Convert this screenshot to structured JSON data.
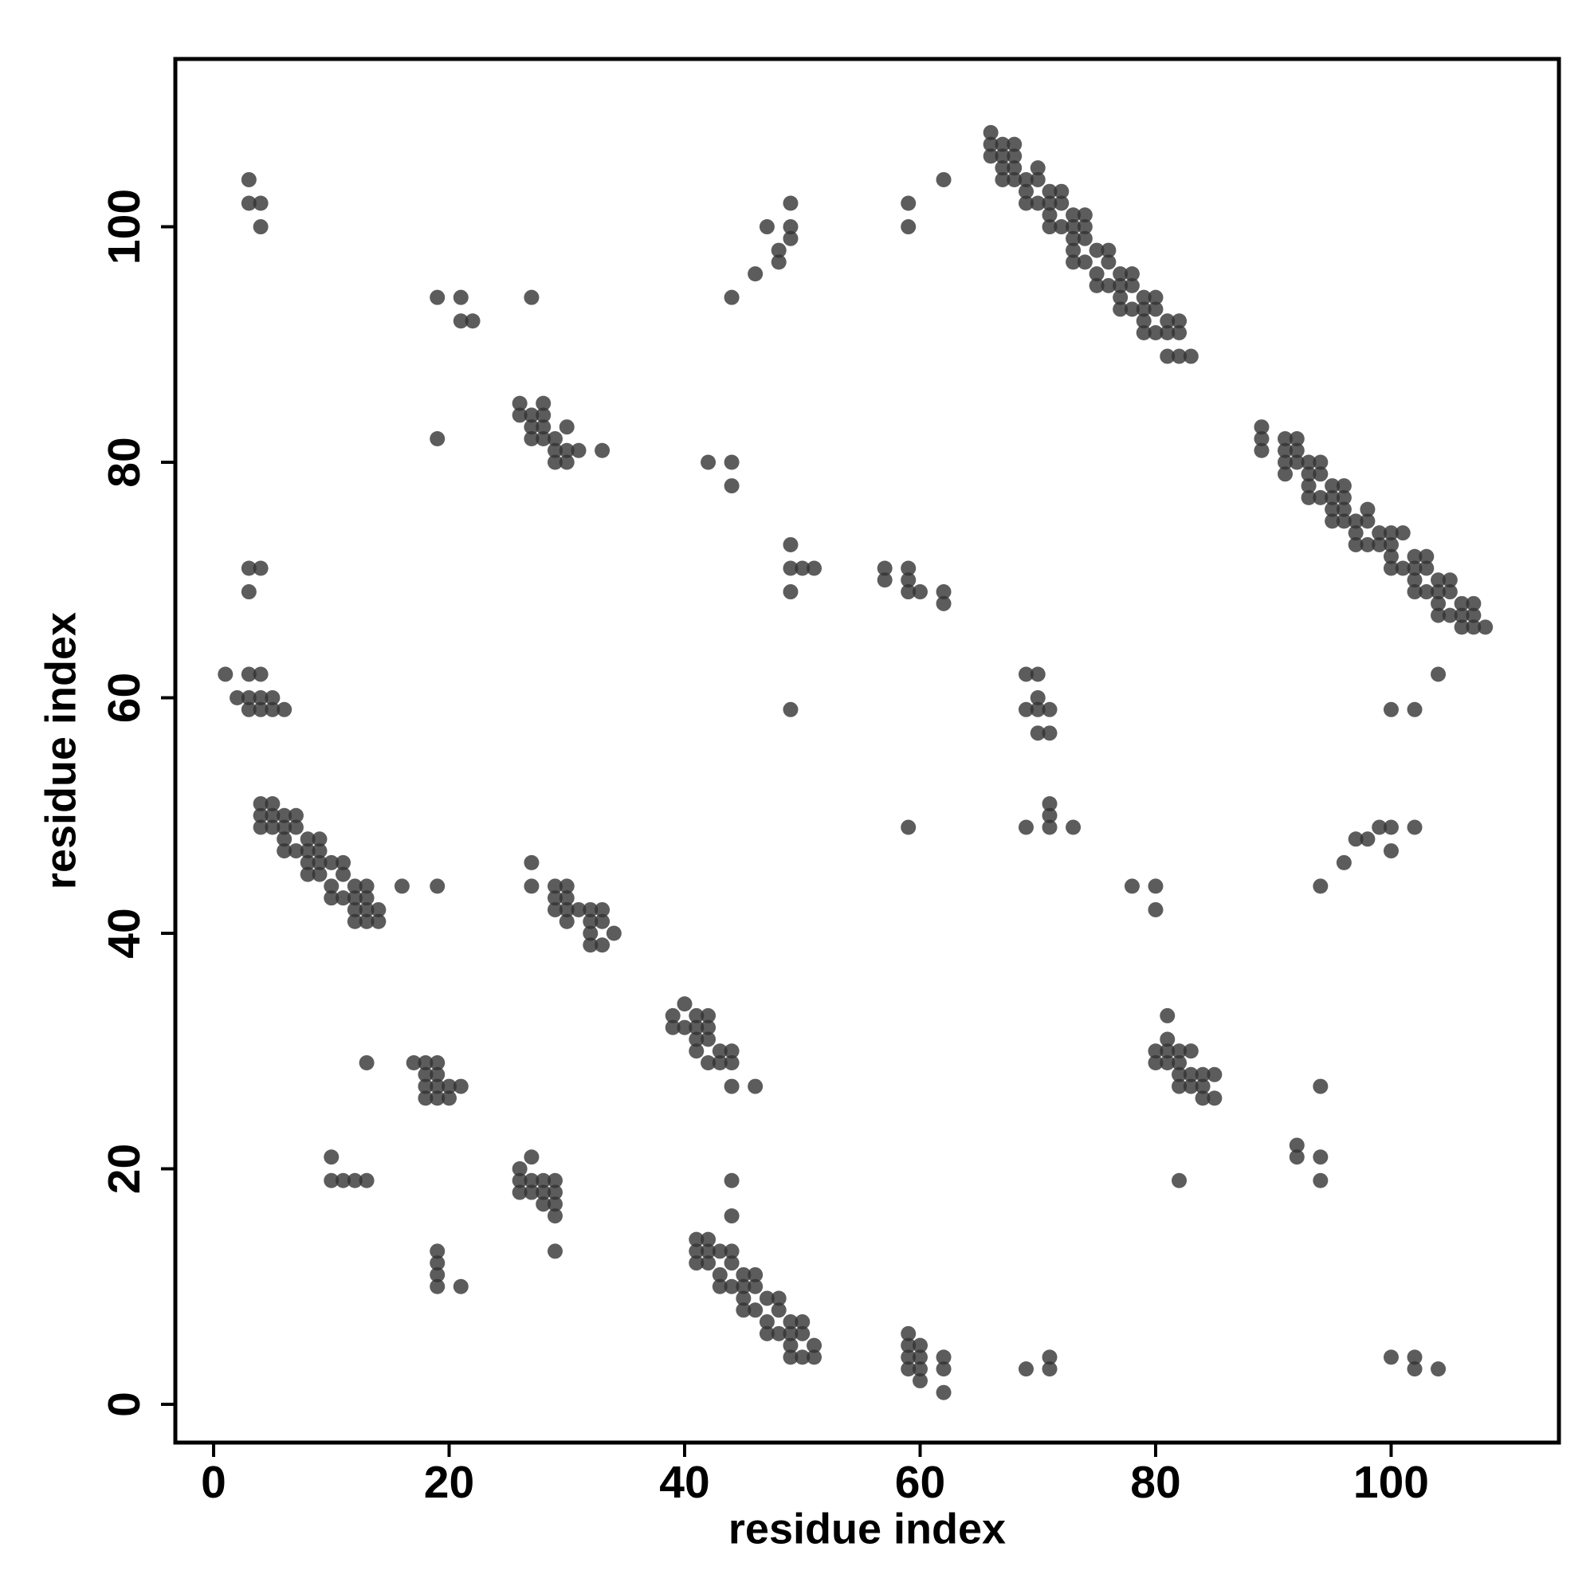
{
  "chart_data": {
    "type": "scatter",
    "x_label": "residue index",
    "y_label": "residue index",
    "color": "#333333",
    "xlim": [
      -3.25,
      114.25
    ],
    "ylim": [
      -3.25,
      114.25
    ],
    "xticks": [
      0,
      20,
      40,
      60,
      80,
      100
    ],
    "yticks": [
      0,
      20,
      40,
      60,
      80,
      100
    ],
    "x": [
      3,
      3,
      4,
      4,
      19,
      21,
      21,
      22,
      27,
      19,
      3,
      4,
      3,
      1,
      3,
      4,
      2,
      3,
      4,
      5,
      3,
      4,
      5,
      6,
      4,
      5,
      4,
      5,
      6,
      7,
      4,
      5,
      6,
      7,
      6,
      8,
      9,
      6,
      7,
      8,
      9,
      8,
      9,
      10,
      11,
      8,
      9,
      11,
      10,
      12,
      13,
      10,
      11,
      12,
      13,
      12,
      13,
      14,
      12,
      13,
      14,
      16,
      19,
      26,
      28,
      26,
      27,
      28,
      27,
      28,
      30,
      27,
      28,
      29,
      29,
      30,
      31,
      33,
      29,
      30,
      27,
      27,
      29,
      30,
      29,
      30,
      29,
      30,
      31,
      32,
      33,
      30,
      32,
      33,
      32,
      34,
      32,
      33,
      39,
      40,
      41,
      42,
      39,
      40,
      41,
      42,
      41,
      42,
      41,
      43,
      44,
      42,
      43,
      44,
      44,
      46,
      13,
      17,
      18,
      19,
      18,
      19,
      18,
      19,
      20,
      21,
      18,
      19,
      20,
      10,
      10,
      11,
      12,
      13,
      26,
      27,
      26,
      27,
      28,
      29,
      26,
      27,
      28,
      29,
      28,
      29,
      29,
      29,
      19,
      19,
      19,
      19,
      21,
      44,
      44,
      41,
      42,
      41,
      42,
      43,
      44,
      41,
      42,
      44,
      43,
      45,
      46,
      43,
      44,
      45,
      46,
      45,
      47,
      48,
      45,
      46,
      48,
      47,
      49,
      50,
      47,
      48,
      49,
      50,
      49,
      51,
      49,
      50,
      51,
      59,
      59,
      60,
      59,
      60,
      59,
      60,
      62,
      62,
      60,
      62,
      69,
      71,
      71,
      42,
      44,
      44,
      44,
      46,
      47,
      48,
      48,
      49,
      49,
      49,
      49,
      49,
      50,
      51,
      49,
      49,
      57,
      59,
      57,
      59,
      59,
      60,
      62,
      62,
      59,
      59,
      62,
      66,
      66,
      67,
      68,
      66,
      67,
      68,
      67,
      68,
      70,
      67,
      68,
      69,
      70,
      69,
      71,
      72,
      69,
      70,
      71,
      72,
      71,
      73,
      74,
      71,
      72,
      73,
      74,
      73,
      74,
      73,
      75,
      76,
      73,
      74,
      76,
      75,
      77,
      78,
      75,
      76,
      77,
      78,
      77,
      79,
      80,
      77,
      78,
      79,
      80,
      79,
      81,
      82,
      79,
      80,
      81,
      82,
      81,
      82,
      83,
      69,
      70,
      70,
      70,
      71,
      71,
      70,
      69,
      59,
      71,
      71,
      69,
      71,
      73,
      78,
      80,
      80,
      81,
      81,
      80,
      81,
      82,
      83,
      80,
      81,
      82,
      82,
      83,
      84,
      85,
      82,
      83,
      84,
      84,
      85,
      82,
      89,
      89,
      89,
      91,
      92,
      91,
      92,
      91,
      92,
      93,
      94,
      91,
      93,
      94,
      93,
      95,
      96,
      93,
      94,
      95,
      96,
      95,
      96,
      98,
      95,
      96,
      97,
      98,
      97,
      99,
      100,
      101,
      97,
      98,
      99,
      100,
      100,
      102,
      103,
      100,
      101,
      102,
      103,
      102,
      104,
      105,
      102,
      103,
      104,
      105,
      104,
      106,
      107,
      104,
      105,
      106,
      107,
      106,
      107,
      108,
      104,
      100,
      102,
      96,
      97,
      98,
      99,
      100,
      100,
      102,
      94,
      94,
      92,
      92,
      94,
      94,
      100,
      102,
      102,
      104
    ],
    "values": [
      104,
      102,
      102,
      100,
      94,
      94,
      92,
      92,
      94,
      82,
      71,
      71,
      69,
      62,
      62,
      62,
      60,
      60,
      60,
      60,
      59,
      59,
      59,
      59,
      51,
      51,
      50,
      50,
      50,
      50,
      49,
      49,
      49,
      49,
      48,
      48,
      48,
      47,
      47,
      47,
      47,
      46,
      46,
      46,
      46,
      45,
      45,
      45,
      44,
      44,
      44,
      43,
      43,
      43,
      43,
      42,
      42,
      42,
      41,
      41,
      41,
      44,
      44,
      85,
      85,
      84,
      84,
      84,
      83,
      83,
      83,
      82,
      82,
      82,
      81,
      81,
      81,
      81,
      80,
      80,
      46,
      44,
      44,
      44,
      43,
      43,
      42,
      42,
      42,
      42,
      42,
      41,
      41,
      41,
      40,
      40,
      39,
      39,
      33,
      34,
      33,
      33,
      32,
      32,
      32,
      32,
      31,
      31,
      30,
      30,
      30,
      29,
      29,
      29,
      27,
      27,
      29,
      29,
      29,
      29,
      28,
      28,
      27,
      27,
      27,
      27,
      26,
      26,
      26,
      21,
      19,
      19,
      19,
      19,
      20,
      21,
      19,
      19,
      19,
      19,
      18,
      18,
      18,
      18,
      17,
      17,
      16,
      13,
      13,
      12,
      11,
      10,
      10,
      19,
      16,
      14,
      14,
      13,
      13,
      13,
      13,
      12,
      12,
      12,
      11,
      11,
      11,
      10,
      10,
      10,
      10,
      9,
      9,
      9,
      8,
      8,
      8,
      7,
      7,
      7,
      6,
      6,
      6,
      6,
      5,
      5,
      4,
      4,
      4,
      6,
      5,
      5,
      4,
      4,
      3,
      3,
      4,
      3,
      2,
      1,
      3,
      4,
      3,
      80,
      80,
      78,
      94,
      96,
      100,
      98,
      97,
      102,
      100,
      99,
      73,
      71,
      71,
      71,
      69,
      59,
      71,
      71,
      70,
      70,
      69,
      69,
      69,
      68,
      102,
      100,
      104,
      108,
      107,
      107,
      107,
      106,
      106,
      106,
      105,
      105,
      105,
      104,
      104,
      104,
      104,
      103,
      103,
      103,
      102,
      102,
      102,
      102,
      101,
      101,
      101,
      100,
      100,
      100,
      100,
      99,
      99,
      98,
      98,
      98,
      97,
      97,
      97,
      96,
      96,
      96,
      95,
      95,
      95,
      95,
      94,
      94,
      94,
      93,
      93,
      93,
      93,
      92,
      92,
      92,
      91,
      91,
      91,
      91,
      89,
      89,
      89,
      62,
      62,
      60,
      59,
      59,
      57,
      57,
      59,
      49,
      51,
      50,
      49,
      49,
      49,
      44,
      44,
      42,
      33,
      31,
      30,
      30,
      30,
      30,
      29,
      29,
      29,
      28,
      28,
      28,
      28,
      27,
      27,
      27,
      26,
      26,
      19,
      83,
      82,
      81,
      82,
      82,
      81,
      81,
      80,
      80,
      80,
      80,
      79,
      79,
      79,
      78,
      78,
      78,
      77,
      77,
      77,
      77,
      76,
      76,
      76,
      75,
      75,
      75,
      75,
      74,
      74,
      74,
      74,
      73,
      73,
      73,
      73,
      72,
      72,
      72,
      71,
      71,
      71,
      71,
      70,
      70,
      70,
      69,
      69,
      69,
      69,
      68,
      68,
      68,
      67,
      67,
      67,
      67,
      66,
      66,
      66,
      62,
      59,
      59,
      46,
      48,
      48,
      49,
      49,
      47,
      49,
      44,
      27,
      22,
      21,
      21,
      19,
      4,
      4,
      3,
      3
    ]
  }
}
